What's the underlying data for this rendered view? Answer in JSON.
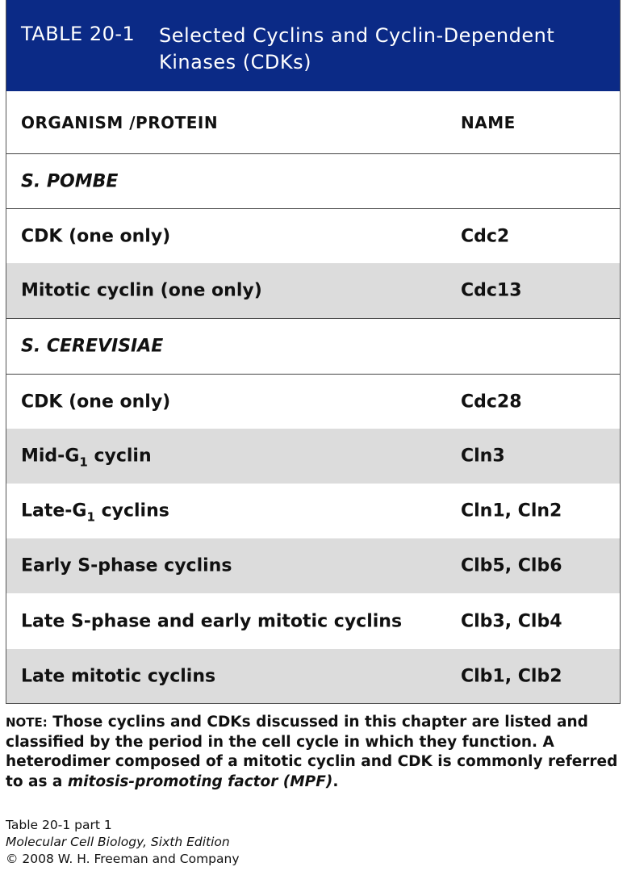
{
  "header": {
    "table_label": "TABLE 20-1",
    "title": "Selected Cyclins and Cyclin-Dependent Kinases (CDKs)",
    "background": "#0b2a86"
  },
  "columns": {
    "left": "ORGANISM /PROTEIN",
    "right": "NAME"
  },
  "rows": [
    {
      "organism": "S. POMBE",
      "section": true
    },
    {
      "protein": "CDK (one only)",
      "name": "Cdc2"
    },
    {
      "protein": "Mitotic cyclin (one only)",
      "name": "Cdc13"
    },
    {
      "organism": "S. CEREVISIAE",
      "section": true
    },
    {
      "protein": "CDK (one only)",
      "name": "Cdc28"
    },
    {
      "protein_pre": "Mid-G",
      "protein_sub": "1",
      "protein_post": " cyclin",
      "name": "Cln3"
    },
    {
      "protein_pre": "Late-G",
      "protein_sub": "1",
      "protein_post": " cyclins",
      "name": "Cln1, Cln2"
    },
    {
      "protein": "Early S-phase cyclins",
      "name": "Clb5, Clb6"
    },
    {
      "protein": "Late S-phase and early mitotic cyclins",
      "name": "Clb3, Clb4"
    },
    {
      "protein": "Late mitotic cyclins",
      "name": "Clb1, Clb2"
    }
  ],
  "note": {
    "tag": "NOTE:",
    "text": " Those cyclins and CDKs discussed in this chapter are listed and classified by the period in the cell cycle in which they function. A heterodimer composed of a mitotic cyclin and CDK is commonly referred to as a ",
    "term": "mitosis-promoting factor (MPF)",
    "end": "."
  },
  "caption": {
    "line1": "Table 20-1 part 1",
    "line2": "Molecular Cell Biology, Sixth Edition",
    "line3": "© 2008 W. H. Freeman and Company"
  },
  "shade_color": "#dcdcdc"
}
